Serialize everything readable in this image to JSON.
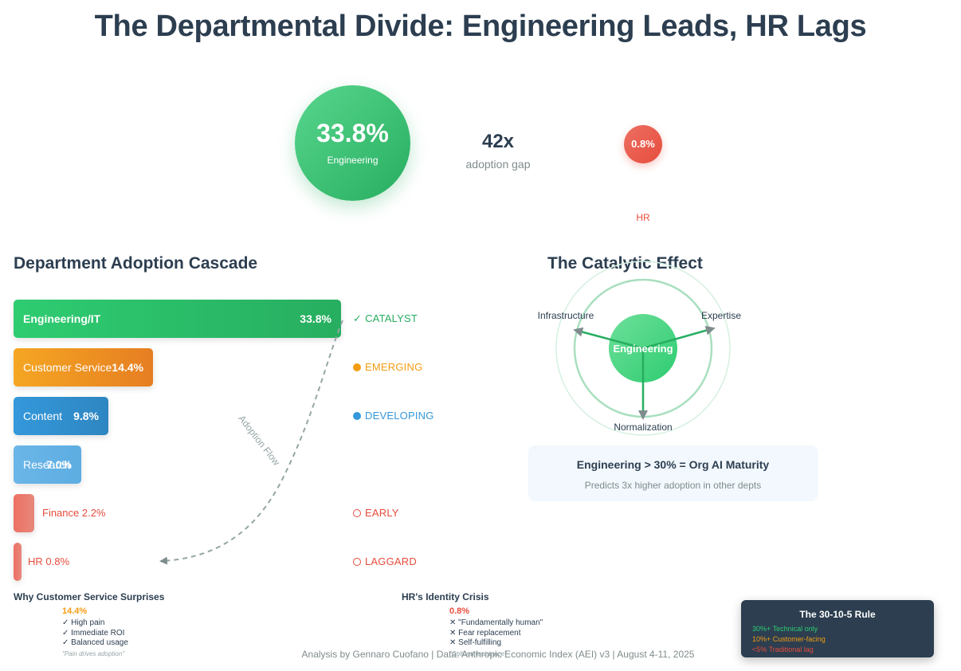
{
  "title": {
    "regular": "The Departmental Divide: ",
    "bold": "Engineering Leads, HR Lags"
  },
  "hero": {
    "engineering_pct": "33.8%",
    "engineering_label": "Engineering",
    "gap_value": "42x",
    "gap_label": "adoption gap",
    "hr_pct": "0.8%",
    "hr_label": "HR"
  },
  "cascade": {
    "title": "Department Adoption Cascade",
    "flow_label": "Adoption Flow",
    "statuses": [
      {
        "mark": "✓",
        "label": "CATALYST",
        "color": "#27ae60"
      },
      {
        "mark": "●",
        "label": "EMERGING",
        "color": "#f39c12"
      },
      {
        "mark": "●",
        "label": "DEVELOPING",
        "color": "#3498db"
      },
      {
        "mark": "",
        "label": "",
        "color": "#3498db"
      },
      {
        "mark": "○",
        "label": "EARLY",
        "color": "#e74c3c"
      },
      {
        "mark": "○",
        "label": "LAGGARD",
        "color": "#e74c3c"
      }
    ]
  },
  "chart_data": {
    "type": "bar",
    "orientation": "horizontal",
    "title": "Department Adoption Cascade",
    "categories": [
      "Engineering/IT",
      "Customer Service",
      "Content",
      "Research",
      "Finance",
      "HR"
    ],
    "values": [
      33.8,
      14.4,
      9.8,
      7.0,
      2.2,
      0.8
    ],
    "value_labels": [
      "33.8%",
      "14.4%",
      "9.8%",
      "7.0%",
      "2.2%",
      "0.8%"
    ],
    "external_labels": [
      "",
      "",
      "",
      "",
      "Finance 2.2%",
      "HR 0.8%"
    ],
    "unit": "%",
    "xlim": [
      0,
      33.8
    ],
    "colors": [
      "#27ae60",
      "#f39c12",
      "#3498db",
      "#5dade2",
      "#ec7063",
      "#ec7063"
    ],
    "grid": false
  },
  "catalytic": {
    "title": "The Catalytic Effect",
    "center": "Engineering",
    "nodes": [
      "Infrastructure",
      "Expertise",
      "Normalization"
    ],
    "box_main": "Engineering > 30% = Org AI Maturity",
    "box_sub": "Predicts 3x higher adoption in other depts"
  },
  "insights": {
    "cs": {
      "title": "Why Customer Service Surprises",
      "stat": "14.4%",
      "items": [
        "✓ High pain",
        "✓ Immediate ROI",
        "✓ Balanced usage"
      ],
      "quote": "\"Pain drives adoption\""
    },
    "hr": {
      "title": "HR's Identity Crisis",
      "stat": "0.8%",
      "items": [
        "✕ \"Fundamentally human\"",
        "✕ Fear replacement",
        "✕ Self-fulfilling"
      ],
      "quote": "\"Cultural resistance\""
    }
  },
  "rule": {
    "title": "The 30-10-5 Rule",
    "lines": [
      {
        "text": "30%+ Technical only",
        "color": "#2ecc71"
      },
      {
        "text": "10%+ Customer-facing",
        "color": "#f39c12"
      },
      {
        "text": "<5% Traditional lag",
        "color": "#e74c3c"
      }
    ]
  },
  "footer": "Analysis by Gennaro Cuofano | Data: Anthropic Economic Index (AEI) v3 | August 4-11, 2025",
  "colors": {
    "green": "#27ae60",
    "orange": "#f39c12",
    "blue": "#3498db",
    "light_blue": "#5dade2",
    "red": "#e74c3c",
    "navy": "#2c3e50",
    "gray": "#7f8c8d"
  }
}
